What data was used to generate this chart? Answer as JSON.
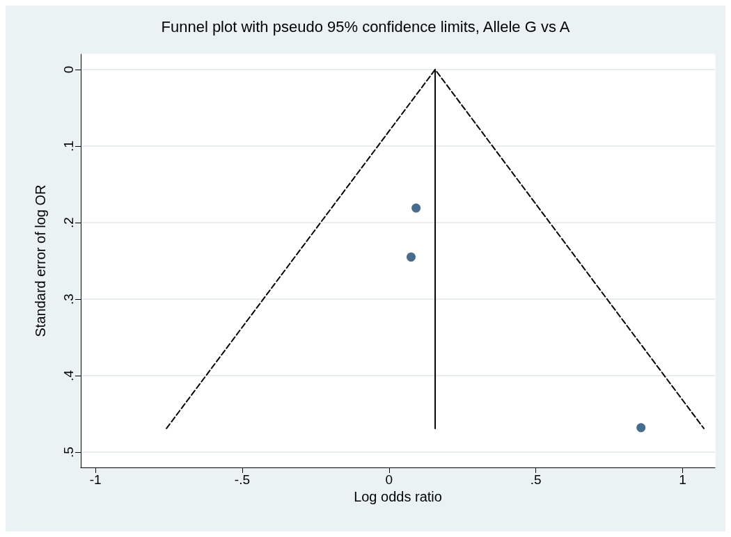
{
  "chart_data": {
    "type": "scatter",
    "title": "Funnel plot with pseudo 95% confidence limits, Allele G vs A",
    "xlabel": "Log odds ratio",
    "ylabel": "Standard error of log OR",
    "xlim": [
      -1.05,
      1.11
    ],
    "ylim": [
      0.52,
      -0.02
    ],
    "xticks": [
      -1,
      {
        "value": -0.5,
        "label": "-.5"
      },
      0,
      {
        "value": 0.5,
        "label": ".5"
      },
      1
    ],
    "yticks": [
      0,
      {
        "value": 0.1,
        "label": ".1"
      },
      {
        "value": 0.2,
        "label": ".2"
      },
      {
        "value": 0.3,
        "label": ".3"
      },
      {
        "value": 0.4,
        "label": ".4"
      },
      {
        "value": 0.5,
        "label": ".5"
      }
    ],
    "grid": "y",
    "series": [
      {
        "type": "line",
        "color": "#000000",
        "line_style": "dashed",
        "marker": "none",
        "x": [
          -0.758,
          0.157,
          1.072
        ],
        "values": [
          0.469,
          0,
          0.469
        ]
      },
      {
        "type": "line",
        "color": "#000000",
        "line_style": "solid",
        "marker": "none",
        "x": [
          0.157,
          0.157
        ],
        "values": [
          0,
          0.469
        ]
      },
      {
        "type": "scatter",
        "color": "#1a476f",
        "marker": "circle",
        "x": [
          0.092,
          0.075,
          0.858
        ],
        "values": [
          0.181,
          0.245,
          0.468
        ]
      }
    ]
  }
}
